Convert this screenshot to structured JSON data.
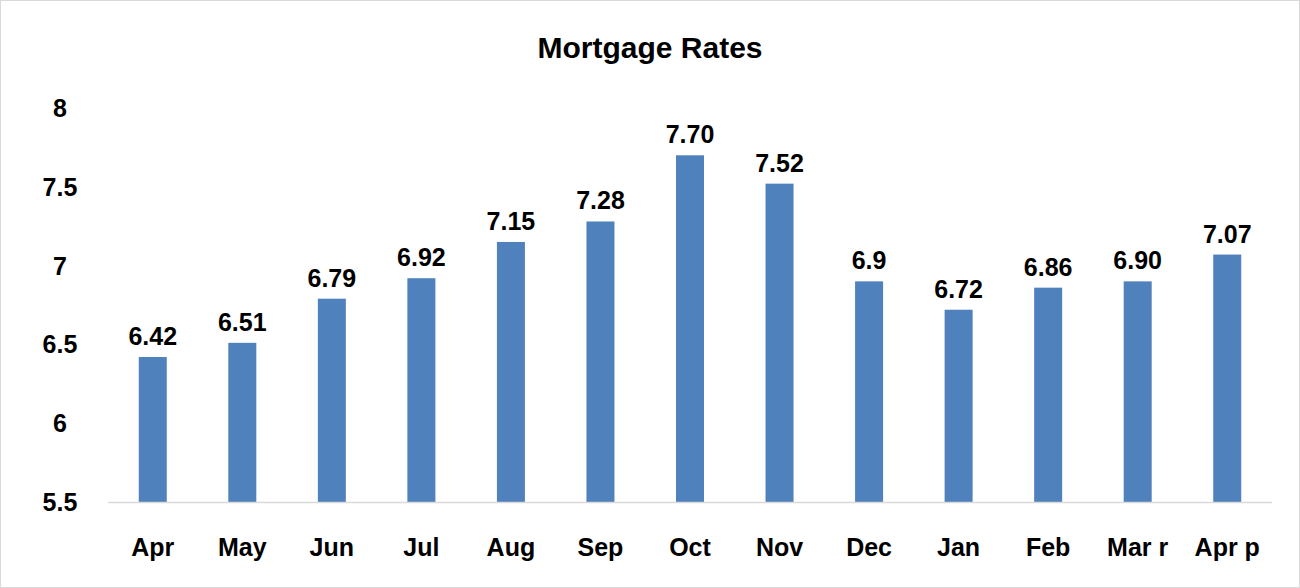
{
  "chart_data": {
    "type": "bar",
    "title": "Mortgage Rates",
    "categories": [
      "Apr",
      "May",
      "Jun",
      "Jul",
      "Aug",
      "Sep",
      "Oct",
      "Nov",
      "Dec",
      "Jan",
      "Feb",
      "Mar r",
      "Apr p"
    ],
    "values": [
      6.42,
      6.51,
      6.79,
      6.92,
      7.15,
      7.28,
      7.7,
      7.52,
      6.9,
      6.72,
      6.86,
      6.9,
      7.07
    ],
    "value_labels": [
      "6.42",
      "6.51",
      "6.79",
      "6.92",
      "7.15",
      "7.28",
      "7.70",
      "7.52",
      "6.9",
      "6.72",
      "6.86",
      "6.90",
      "7.07"
    ],
    "color": "#4f81bd",
    "ylim": [
      5.5,
      8
    ],
    "yticks": [
      5.5,
      6,
      6.5,
      7,
      7.5,
      8
    ],
    "grid": false,
    "data_labels": true
  }
}
